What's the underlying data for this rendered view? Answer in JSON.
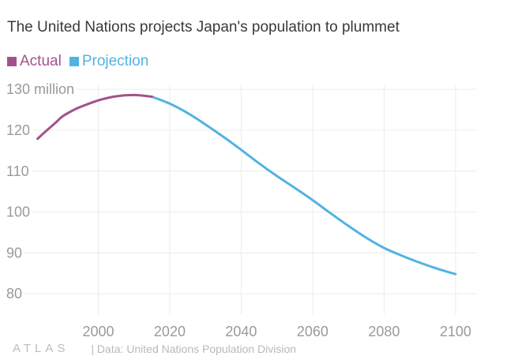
{
  "chart_data": {
    "type": "line",
    "title": "The United Nations projects Japan's population to plummet",
    "xlabel": "",
    "ylabel": "",
    "xlim": [
      1980,
      2106
    ],
    "ylim": [
      75,
      131
    ],
    "x_ticks": [
      2000,
      2020,
      2040,
      2060,
      2080,
      2100
    ],
    "y_ticks": [
      80,
      90,
      100,
      110,
      120,
      130
    ],
    "y_tick_labels": [
      "80",
      "90",
      "100",
      "110",
      "120",
      "130 million"
    ],
    "grid": true,
    "legend_position": "top-left",
    "series": [
      {
        "name": "Actual",
        "color": "#a2528a",
        "x": [
          1983,
          1985,
          1988,
          1990,
          1993,
          1995,
          2000,
          2005,
          2010,
          2015
        ],
        "y": [
          117.9,
          119.5,
          121.8,
          123.4,
          124.9,
          125.7,
          127.3,
          128.3,
          128.6,
          128.2
        ]
      },
      {
        "name": "Projection",
        "color": "#51b3e3",
        "x": [
          2015,
          2020,
          2025,
          2030,
          2035,
          2040,
          2045,
          2050,
          2055,
          2060,
          2065,
          2070,
          2075,
          2080,
          2085,
          2090,
          2095,
          2100
        ],
        "y": [
          128.2,
          126.5,
          124.2,
          121.4,
          118.4,
          115.2,
          111.9,
          108.8,
          105.9,
          102.9,
          99.7,
          96.6,
          93.7,
          91.2,
          89.3,
          87.6,
          86.1,
          84.8
        ]
      }
    ]
  },
  "footer": {
    "logo": "ATLAS",
    "source": "| Data: United Nations Population Division"
  }
}
